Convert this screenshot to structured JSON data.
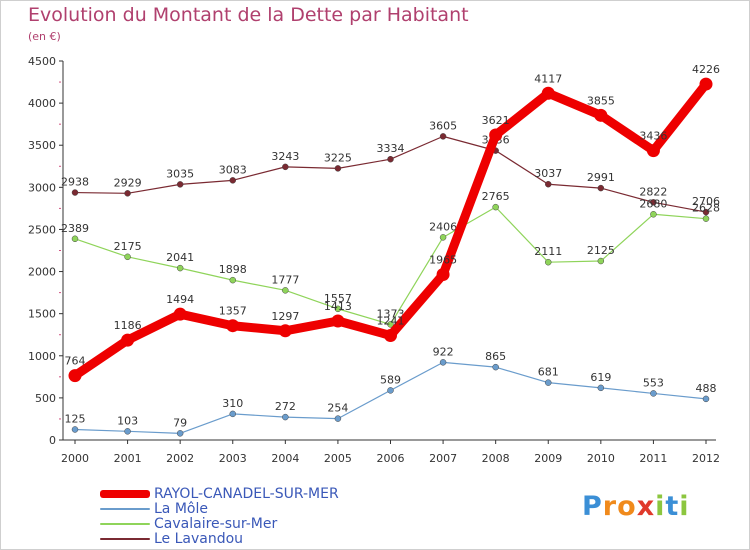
{
  "title": "Evolution du Montant de la Dette par Habitant",
  "subtitle": "(en €)",
  "logo": "Proxiti",
  "chart_data": {
    "type": "line",
    "title": "Evolution du Montant de la Dette par Habitant",
    "ylabel": "(en €)",
    "xlabel": "",
    "ylim": [
      0,
      4500
    ],
    "yticks": [
      0,
      500,
      1000,
      1500,
      2000,
      2500,
      3000,
      3500,
      4000,
      4500
    ],
    "grid": false,
    "legend_position": "bottom-left",
    "x": [
      "2000",
      "2001",
      "2002",
      "2003",
      "2004",
      "2005",
      "2006",
      "2007",
      "2008",
      "2009",
      "2010",
      "2011",
      "2012"
    ],
    "series": [
      {
        "name": "Le Lavandou",
        "color": "#7a2a32",
        "values": [
          2938,
          2929,
          3035,
          3083,
          3243,
          3225,
          3334,
          3605,
          3436,
          3037,
          2991,
          2822,
          2706
        ]
      },
      {
        "name": "Cavalaire-sur-Mer",
        "color": "#8fd45a",
        "values": [
          2389,
          2175,
          2041,
          1898,
          1777,
          1557,
          1373,
          2406,
          2765,
          2111,
          2125,
          2680,
          2628
        ]
      },
      {
        "name": "La Môle",
        "color": "#6a9ccc",
        "values": [
          125,
          103,
          79,
          310,
          272,
          254,
          589,
          922,
          865,
          681,
          619,
          553,
          488
        ]
      },
      {
        "name": "RAYOL-CANADEL-SUR-MER",
        "color": "#ee0000",
        "values": [
          764,
          1186,
          1494,
          1357,
          1297,
          1413,
          1241,
          1965,
          3621,
          4117,
          3855,
          3436,
          4226
        ]
      }
    ]
  },
  "legend": [
    {
      "label": "RAYOL-CANADEL-SUR-MER",
      "color": "#ee0000"
    },
    {
      "label": "La Môle",
      "color": "#6a9ccc"
    },
    {
      "label": "Cavalaire-sur-Mer",
      "color": "#8fd45a"
    },
    {
      "label": "Le Lavandou",
      "color": "#7a2a32"
    }
  ]
}
